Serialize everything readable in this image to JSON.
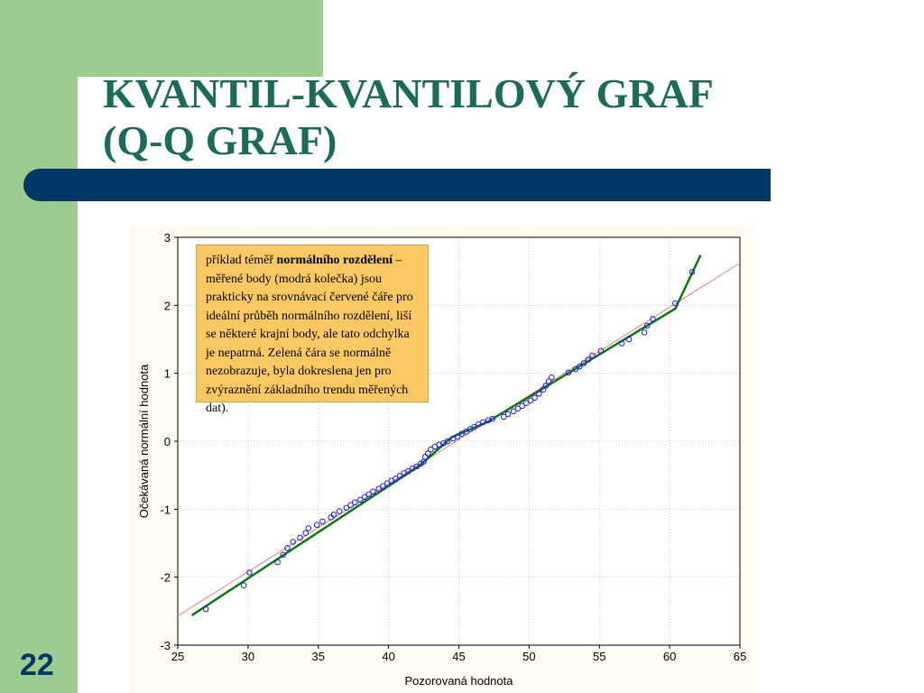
{
  "slide": {
    "title_line1": "KVANTIL-KVANTILOVÝ GRAF",
    "title_line2": "(Q-Q GRAF)",
    "page_number": "22"
  },
  "annotation": {
    "part1": "příklad téměř ",
    "bold": "normálního rozdělení",
    "part2": " – měřené body (modrá kolečka) jsou prakticky na srovnávací červené čáře pro ideální průběh normálního rozdělení, liší se některé krajní body, ale tato odchylka je nepatrná. Zelená čára se normálně nezobrazuje, byla dokreslena jen pro zvýraznění základního trendu měřených dat)."
  },
  "colors": {
    "points": "#1a1aff",
    "reference_line": "#e58080",
    "trend_line": "#0a7a0a",
    "grid": "#c9c9c9",
    "annotation_bg": "#fcc862",
    "title": "#1a6b5a",
    "accent_bar": "#003865",
    "side_band": "#9ccc8f"
  },
  "chart_data": {
    "type": "scatter",
    "title": "",
    "xlabel": "Pozorovaná hodnota",
    "ylabel": "Očekávaná normální hodnota",
    "xlim": [
      25,
      65
    ],
    "ylim": [
      -3,
      3
    ],
    "xticks": [
      25,
      30,
      35,
      40,
      45,
      50,
      55,
      60,
      65
    ],
    "yticks": [
      3,
      2,
      1,
      0,
      -1,
      -2,
      -3
    ],
    "xtick_labels": [
      "25",
      "30",
      "35",
      "40",
      "45",
      "50",
      "55",
      "60",
      "65"
    ],
    "ytick_labels": [
      "3",
      "2",
      "1",
      "0",
      "-1",
      "-2",
      "-3"
    ],
    "grid": true,
    "points": [
      [
        27.0,
        -2.47
      ],
      [
        29.7,
        -2.12
      ],
      [
        30.1,
        -1.93
      ],
      [
        32.1,
        -1.78
      ],
      [
        32.5,
        -1.67
      ],
      [
        32.8,
        -1.57
      ],
      [
        33.2,
        -1.48
      ],
      [
        33.7,
        -1.42
      ],
      [
        34.1,
        -1.35
      ],
      [
        34.3,
        -1.28
      ],
      [
        34.9,
        -1.23
      ],
      [
        35.3,
        -1.18
      ],
      [
        35.9,
        -1.12
      ],
      [
        36.1,
        -1.08
      ],
      [
        36.5,
        -1.03
      ],
      [
        37.0,
        -0.98
      ],
      [
        37.3,
        -0.94
      ],
      [
        37.6,
        -0.9
      ],
      [
        38.0,
        -0.86
      ],
      [
        38.3,
        -0.82
      ],
      [
        38.6,
        -0.78
      ],
      [
        38.9,
        -0.74
      ],
      [
        39.3,
        -0.7
      ],
      [
        39.6,
        -0.66
      ],
      [
        39.9,
        -0.62
      ],
      [
        40.2,
        -0.58
      ],
      [
        40.5,
        -0.55
      ],
      [
        40.8,
        -0.51
      ],
      [
        41.1,
        -0.47
      ],
      [
        41.4,
        -0.44
      ],
      [
        41.7,
        -0.4
      ],
      [
        42.0,
        -0.37
      ],
      [
        42.3,
        -0.33
      ],
      [
        42.5,
        -0.3
      ],
      [
        42.6,
        -0.23
      ],
      [
        42.8,
        -0.18
      ],
      [
        43.0,
        -0.12
      ],
      [
        43.3,
        -0.08
      ],
      [
        43.6,
        -0.05
      ],
      [
        43.9,
        -0.03
      ],
      [
        44.2,
        0.0
      ],
      [
        44.6,
        0.04
      ],
      [
        44.9,
        0.07
      ],
      [
        45.2,
        0.11
      ],
      [
        45.5,
        0.14
      ],
      [
        45.8,
        0.18
      ],
      [
        46.1,
        0.21
      ],
      [
        46.4,
        0.25
      ],
      [
        46.7,
        0.28
      ],
      [
        47.1,
        0.31
      ],
      [
        47.4,
        0.33
      ],
      [
        48.2,
        0.36
      ],
      [
        48.5,
        0.4
      ],
      [
        48.9,
        0.44
      ],
      [
        49.2,
        0.48
      ],
      [
        49.5,
        0.52
      ],
      [
        49.8,
        0.56
      ],
      [
        50.1,
        0.6
      ],
      [
        50.4,
        0.64
      ],
      [
        50.7,
        0.7
      ],
      [
        51.0,
        0.76
      ],
      [
        51.2,
        0.82
      ],
      [
        51.4,
        0.88
      ],
      [
        51.6,
        0.94
      ],
      [
        52.8,
        1.01
      ],
      [
        53.3,
        1.06
      ],
      [
        53.6,
        1.1
      ],
      [
        53.9,
        1.15
      ],
      [
        54.2,
        1.2
      ],
      [
        54.5,
        1.26
      ],
      [
        55.1,
        1.33
      ],
      [
        56.6,
        1.44
      ],
      [
        57.1,
        1.5
      ],
      [
        58.2,
        1.6
      ],
      [
        58.4,
        1.7
      ],
      [
        58.8,
        1.8
      ],
      [
        60.4,
        2.03
      ],
      [
        61.6,
        2.49
      ]
    ],
    "reference_line": [
      [
        25,
        -2.57
      ],
      [
        65,
        2.62
      ]
    ],
    "trend_line": [
      [
        26.0,
        -2.56
      ],
      [
        42.2,
        -0.36
      ],
      [
        44.5,
        0.06
      ],
      [
        47.0,
        0.28
      ],
      [
        60.4,
        1.95
      ],
      [
        62.2,
        2.74
      ]
    ]
  }
}
